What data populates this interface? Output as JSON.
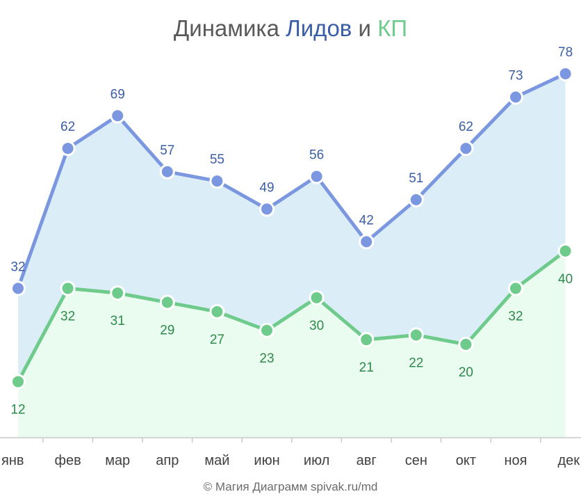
{
  "title": {
    "prefix": "Динамика ",
    "series1_word": "Лидов",
    "connector": " и ",
    "series2_word": "КП"
  },
  "colors": {
    "leads_line": "#7b97e0",
    "leads_label": "#3a5da8",
    "leads_fill": "#dbeef7",
    "kp_line": "#6fcb8b",
    "kp_label": "#2e8a4c",
    "kp_fill": "#eafcef",
    "title_text": "#595959",
    "axis": "#c8c8c8"
  },
  "chart_data": {
    "type": "area",
    "title": "Динамика Лидов и КП",
    "categories": [
      "янв",
      "фев",
      "мар",
      "апр",
      "май",
      "июн",
      "июл",
      "авг",
      "сен",
      "окт",
      "ноя",
      "дек"
    ],
    "series": [
      {
        "name": "Лидов",
        "values": [
          32,
          62,
          69,
          57,
          55,
          49,
          56,
          42,
          51,
          62,
          73,
          78
        ]
      },
      {
        "name": "КП",
        "values": [
          12,
          32,
          31,
          29,
          27,
          23,
          30,
          21,
          22,
          20,
          32,
          40
        ]
      }
    ],
    "ylim": [
      0,
      85
    ],
    "grid": false,
    "data_labels": true,
    "markers": true
  },
  "footer": {
    "copyright": "© Магия Диаграмм spivak.ru/md"
  }
}
